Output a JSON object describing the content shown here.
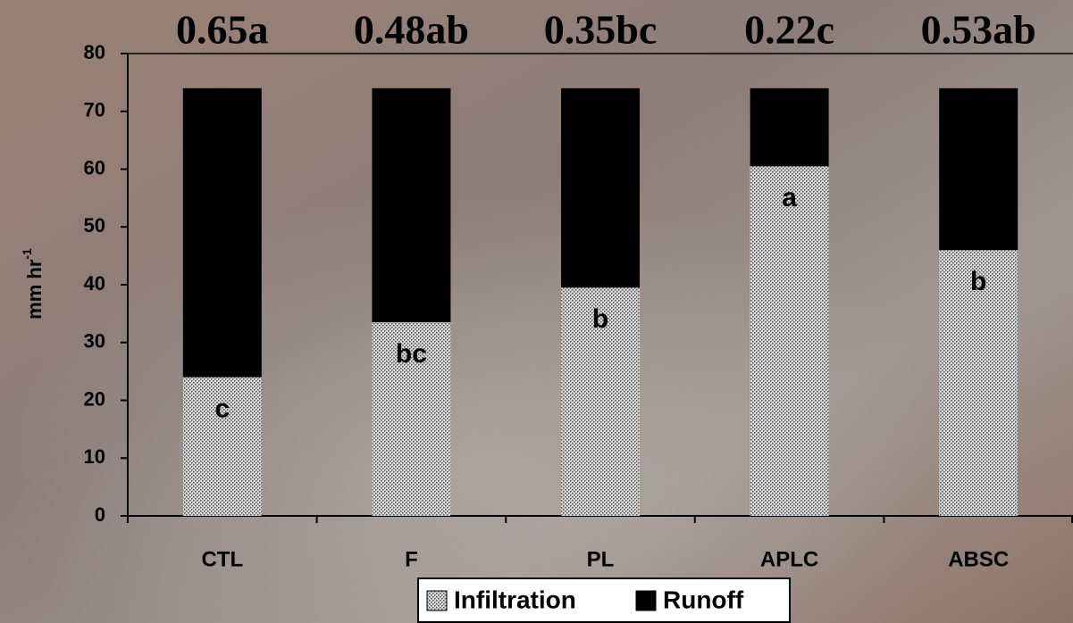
{
  "chart_data": {
    "type": "stacked_bar",
    "ylabel": "mm hr",
    "ylabel_superscript": "-1",
    "categories": [
      "CTL",
      "F",
      "PL",
      "APLC",
      "ABSC"
    ],
    "top_labels": [
      "0.65a",
      "0.48ab",
      "0.35bc",
      "0.22c",
      "0.53ab"
    ],
    "bar_labels": [
      "c",
      "bc",
      "b",
      "a",
      "b"
    ],
    "series": [
      {
        "name": "Infiltration",
        "color": "#d4d4d4",
        "values": [
          24,
          33.5,
          39.5,
          60.5,
          46
        ]
      },
      {
        "name": "Runoff",
        "color": "#000000",
        "values": [
          50,
          40.5,
          34.5,
          13.5,
          28
        ]
      }
    ],
    "ylim": [
      0,
      80
    ],
    "yticks": [
      0,
      10,
      20,
      30,
      40,
      50,
      60,
      70,
      80
    ]
  }
}
